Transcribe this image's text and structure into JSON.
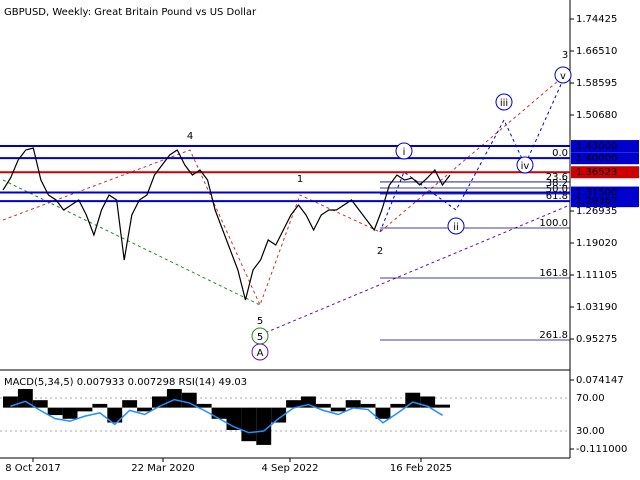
{
  "chart_data": {
    "type": "line",
    "title": "GBPUSD, Weekly:  Great Britain Pound vs US Dollar",
    "ylim": [
      0.88105,
      1.79125
    ],
    "yticks": [
      1.74425,
      {
        "value": 1.6651,
        "label": "1.66510"
      },
      1.58595,
      {
        "value": 1.5068,
        "label": "1.50680"
      },
      1.26935,
      {
        "value": 1.1902,
        "label": "1.19020"
      },
      1.11105,
      {
        "value": 1.0319,
        "label": "1.03190"
      },
      0.95275
    ],
    "xtick_labels": [
      "8 Oct 2017",
      "22 Mar 2020",
      "4 Sep 2022",
      "16 Feb 2025"
    ],
    "series": [
      {
        "name": "GBPUSD",
        "color": "#000000",
        "values": [
          1.3213,
          1.351,
          1.3955,
          1.4202,
          1.4252,
          1.346,
          1.3089,
          1.2966,
          1.2718,
          1.2842,
          1.2966,
          1.2595,
          1.21,
          1.2718,
          1.3089,
          1.2966,
          1.1482,
          1.2595,
          1.2966,
          1.3089,
          1.3584,
          1.3831,
          1.4079,
          1.4202,
          1.3831,
          1.3584,
          1.3708,
          1.346,
          1.2718,
          1.2224,
          1.1729,
          1.1235,
          1.0492,
          1.1235,
          1.1482,
          1.1977,
          1.1853,
          1.2224,
          1.2595,
          1.2842,
          1.2595,
          1.2224,
          1.2595,
          1.2718,
          1.2718,
          1.2842,
          1.2966,
          1.2718,
          1.2471,
          1.2224,
          1.2718,
          1.3337,
          1.3584,
          1.346,
          1.351,
          1.3337,
          1.351,
          1.3708,
          1.3337,
          1.3584
        ]
      }
    ],
    "levels": [
      {
        "value": 1.43,
        "label": "1.43000",
        "color": "#0000cd"
      },
      {
        "value": 1.4,
        "label": "1.40000",
        "color": "#0000cd"
      },
      {
        "value": 1.36523,
        "label": "1.36523",
        "color": "#cc0000"
      },
      {
        "value": 1.315,
        "label": "1.31500",
        "color": "#0000cd"
      },
      {
        "value": 1.29367,
        "label": "1.29367",
        "color": "#0000cd"
      }
    ],
    "fib_levels": [
      {
        "value": 1.4,
        "label": "0.0"
      },
      {
        "value": 1.3412,
        "label": "23.6"
      },
      {
        "value": 1.3263,
        "label": "38.2"
      },
      {
        "value": 1.3114,
        "label": "50.0"
      },
      {
        "value": 1.2942,
        "label": "61.8"
      },
      {
        "value": 1.2273,
        "label": "100.0"
      },
      {
        "value": 1.1036,
        "label": "161.8"
      },
      {
        "value": 0.9503,
        "label": "261.8"
      }
    ],
    "wave_labels": [
      "4",
      "1",
      "2",
      "3",
      "5",
      "5",
      "A",
      "i",
      "ii",
      "iii",
      "iv",
      "v"
    ],
    "indicator": {
      "label": "MACD(5,34,5) 0.007933 0.007298 RSI(14) 49.03",
      "macd_ylim": [
        -0.111,
        0.074147
      ],
      "macd_ticks": [
        0.074147,
        {
          "value": -0.111,
          "label": "-0.111000"
        }
      ],
      "rsi_ylim": [
        0,
        100
      ],
      "rsi_ticks": [
        {
          "value": 70,
          "label": "70.00"
        },
        {
          "value": 30,
          "label": "30.00"
        }
      ],
      "macd_values": [
        0.03,
        0.05,
        0.02,
        -0.02,
        -0.03,
        -0.01,
        0.01,
        -0.04,
        0.02,
        -0.01,
        0.03,
        0.05,
        0.04,
        0.01,
        -0.03,
        -0.06,
        -0.09,
        -0.1,
        -0.04,
        0.02,
        0.03,
        0.01,
        -0.01,
        0.02,
        0.01,
        -0.03,
        0.01,
        0.04,
        0.03,
        0.008
      ],
      "rsi_values": [
        60,
        66,
        55,
        45,
        42,
        48,
        52,
        38,
        55,
        50,
        60,
        68,
        64,
        55,
        45,
        35,
        28,
        30,
        45,
        58,
        62,
        55,
        50,
        58,
        56,
        40,
        52,
        65,
        60,
        49
      ],
      "rsi_color": "#1e90ff",
      "macd_color": "#000000"
    }
  }
}
